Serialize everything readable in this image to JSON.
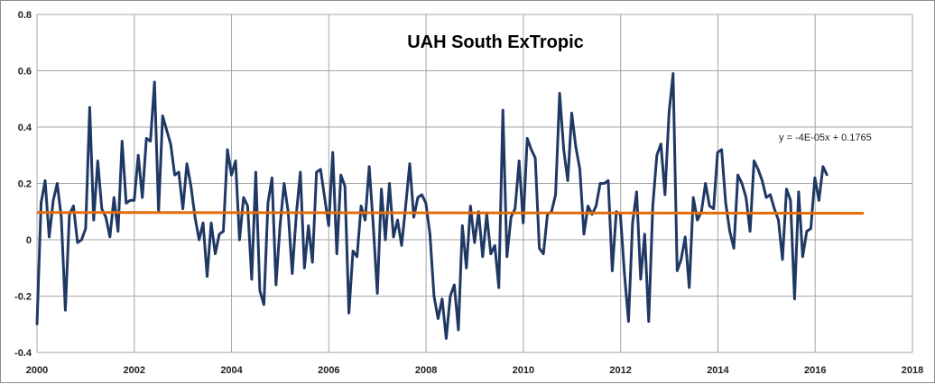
{
  "chart_data": {
    "type": "line",
    "title": "UAH South ExTropic",
    "xlabel": "",
    "ylabel": "",
    "xlim": [
      2000,
      2018
    ],
    "ylim": [
      -0.4,
      0.8
    ],
    "x_ticks": [
      2000,
      2002,
      2004,
      2006,
      2008,
      2010,
      2012,
      2014,
      2016,
      2018
    ],
    "y_ticks": [
      -0.4,
      -0.2,
      0,
      0.2,
      0.4,
      0.6,
      0.8
    ],
    "x_tick_labels": [
      "2000",
      "2002",
      "2004",
      "2006",
      "2008",
      "2010",
      "2012",
      "2014",
      "2016",
      "2018"
    ],
    "y_tick_labels": [
      "-0.4",
      "-0.2",
      "0",
      "0.2",
      "0.4",
      "0.6",
      "0.8"
    ],
    "grid": true,
    "start_year": 2000.0,
    "step_years": 0.0833,
    "series": [
      {
        "color": "#1f3864",
        "values": [
          -0.3,
          0.13,
          0.21,
          0.01,
          0.14,
          0.2,
          0.08,
          -0.25,
          0.09,
          0.12,
          -0.01,
          0.0,
          0.04,
          0.47,
          0.07,
          0.28,
          0.11,
          0.08,
          0.01,
          0.15,
          0.03,
          0.35,
          0.13,
          0.14,
          0.14,
          0.3,
          0.15,
          0.36,
          0.35,
          0.56,
          0.1,
          0.44,
          0.39,
          0.34,
          0.23,
          0.24,
          0.11,
          0.27,
          0.19,
          0.08,
          0.0,
          0.06,
          -0.13,
          0.06,
          -0.05,
          0.02,
          0.03,
          0.32,
          0.23,
          0.28,
          0.0,
          0.15,
          0.12,
          -0.14,
          0.24,
          -0.18,
          -0.23,
          0.13,
          0.22,
          -0.16,
          0.05,
          0.2,
          0.1,
          -0.12,
          0.09,
          0.24,
          -0.1,
          0.05,
          -0.08,
          0.24,
          0.25,
          0.15,
          0.05,
          0.31,
          -0.05,
          0.23,
          0.19,
          -0.26,
          -0.04,
          -0.06,
          0.12,
          0.07,
          0.26,
          0.05,
          -0.19,
          0.18,
          0.0,
          0.2,
          0.01,
          0.07,
          -0.02,
          0.12,
          0.27,
          0.08,
          0.15,
          0.16,
          0.13,
          0.02,
          -0.2,
          -0.28,
          -0.21,
          -0.35,
          -0.2,
          -0.16,
          -0.32,
          0.05,
          -0.1,
          0.12,
          -0.01,
          0.1,
          -0.06,
          0.09,
          -0.05,
          -0.02,
          -0.17,
          0.46,
          -0.06,
          0.08,
          0.11,
          0.28,
          0.06,
          0.36,
          0.32,
          0.29,
          -0.03,
          -0.05,
          0.09,
          0.1,
          0.16,
          0.52,
          0.32,
          0.21,
          0.45,
          0.33,
          0.25,
          0.02,
          0.12,
          0.09,
          0.12,
          0.2,
          0.2,
          0.21,
          -0.11,
          0.1,
          0.09,
          -0.12,
          -0.29,
          0.06,
          0.17,
          -0.14,
          0.02,
          -0.29,
          0.12,
          0.3,
          0.34,
          0.16,
          0.45,
          0.59,
          -0.11,
          -0.07,
          0.01,
          -0.17,
          0.15,
          0.07,
          0.1,
          0.2,
          0.12,
          0.11,
          0.31,
          0.32,
          0.13,
          0.03,
          -0.03,
          0.23,
          0.2,
          0.15,
          0.03,
          0.28,
          0.25,
          0.21,
          0.15,
          0.16,
          0.11,
          0.07,
          -0.07,
          0.18,
          0.14,
          -0.21,
          0.17,
          -0.06,
          0.03,
          0.04,
          0.22,
          0.14,
          0.26,
          0.23
        ]
      },
      {
        "color": "#e36c0a",
        "type": "trendline",
        "x": [
          2000,
          2017
        ],
        "y": [
          0.097,
          0.094
        ]
      }
    ],
    "annotations": [
      {
        "text": "y = -4E-05x + 0.1765"
      }
    ]
  },
  "colors": {
    "gridline": "#a6a6a6",
    "axis": "#868686"
  }
}
